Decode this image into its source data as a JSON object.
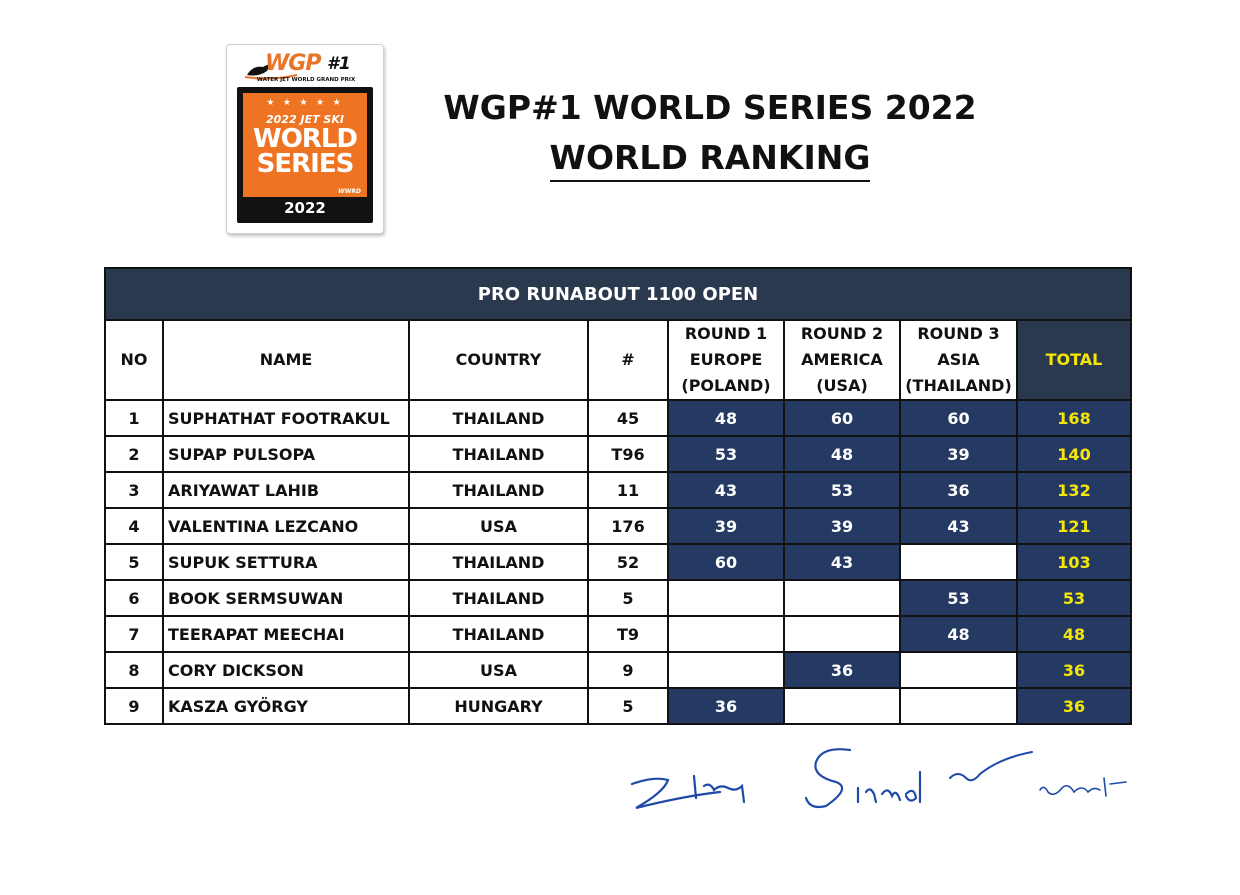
{
  "logo": {
    "brand": "WGP",
    "number": "#1",
    "tagline": "WATER JET WORLD GRAND PRIX",
    "stars": "★ ★ ★ ★ ★",
    "jet_ski": "2022 JET SKI",
    "world": "WORLD",
    "series": "SERIES",
    "mark": "WWRD",
    "year": "2022",
    "colors": {
      "orange": "#ee7424",
      "black": "#111111"
    }
  },
  "header": {
    "title": "WGP#1 WORLD SERIES 2022",
    "subtitle": "WORLD RANKING"
  },
  "table": {
    "category": "PRO RUNABOUT 1100 OPEN",
    "columns": {
      "no": "NO",
      "name": "NAME",
      "country": "COUNTRY",
      "number": "#",
      "round1": [
        "ROUND 1",
        "EUROPE",
        "(POLAND)"
      ],
      "round2": [
        "ROUND 2",
        "AMERICA",
        "(USA)"
      ],
      "round3": [
        "ROUND 3",
        "ASIA",
        "(THAILAND)"
      ],
      "total": "TOTAL"
    },
    "rows": [
      {
        "no": "1",
        "name": "SUPHATHAT FOOTRAKUL",
        "country": "THAILAND",
        "number": "45",
        "r1": "48",
        "r2": "60",
        "r3": "60",
        "total": "168"
      },
      {
        "no": "2",
        "name": "SUPAP PULSOPA",
        "country": "THAILAND",
        "number": "T96",
        "r1": "53",
        "r2": "48",
        "r3": "39",
        "total": "140"
      },
      {
        "no": "3",
        "name": "ARIYAWAT LAHIB",
        "country": "THAILAND",
        "number": "11",
        "r1": "43",
        "r2": "53",
        "r3": "36",
        "total": "132"
      },
      {
        "no": "4",
        "name": "VALENTINA LEZCANO",
        "country": "USA",
        "number": "176",
        "r1": "39",
        "r2": "39",
        "r3": "43",
        "total": "121"
      },
      {
        "no": "5",
        "name": "SUPUK SETTURA",
        "country": "THAILAND",
        "number": "52",
        "r1": "60",
        "r2": "43",
        "r3": "",
        "total": "103"
      },
      {
        "no": "6",
        "name": "BOOK SERMSUWAN",
        "country": "THAILAND",
        "number": "5",
        "r1": "",
        "r2": "",
        "r3": "53",
        "total": "53"
      },
      {
        "no": "7",
        "name": "TEERAPAT MEECHAI",
        "country": "THAILAND",
        "number": "T9",
        "r1": "",
        "r2": "",
        "r3": "48",
        "total": "48"
      },
      {
        "no": "8",
        "name": "CORY DICKSON",
        "country": "USA",
        "number": "9",
        "r1": "",
        "r2": "36",
        "r3": "",
        "total": "36"
      },
      {
        "no": "9",
        "name": "KASZA GYÖRGY",
        "country": "HUNGARY",
        "number": "5",
        "r1": "36",
        "r2": "",
        "r3": "",
        "total": "36"
      }
    ],
    "colors": {
      "header_bg": "#2b394f",
      "score_bg": "#253a62",
      "score_text": "#ffffff",
      "total_text": "#f5e60a"
    }
  },
  "signatures": {
    "count": 4,
    "color": "#1f4aa8"
  }
}
